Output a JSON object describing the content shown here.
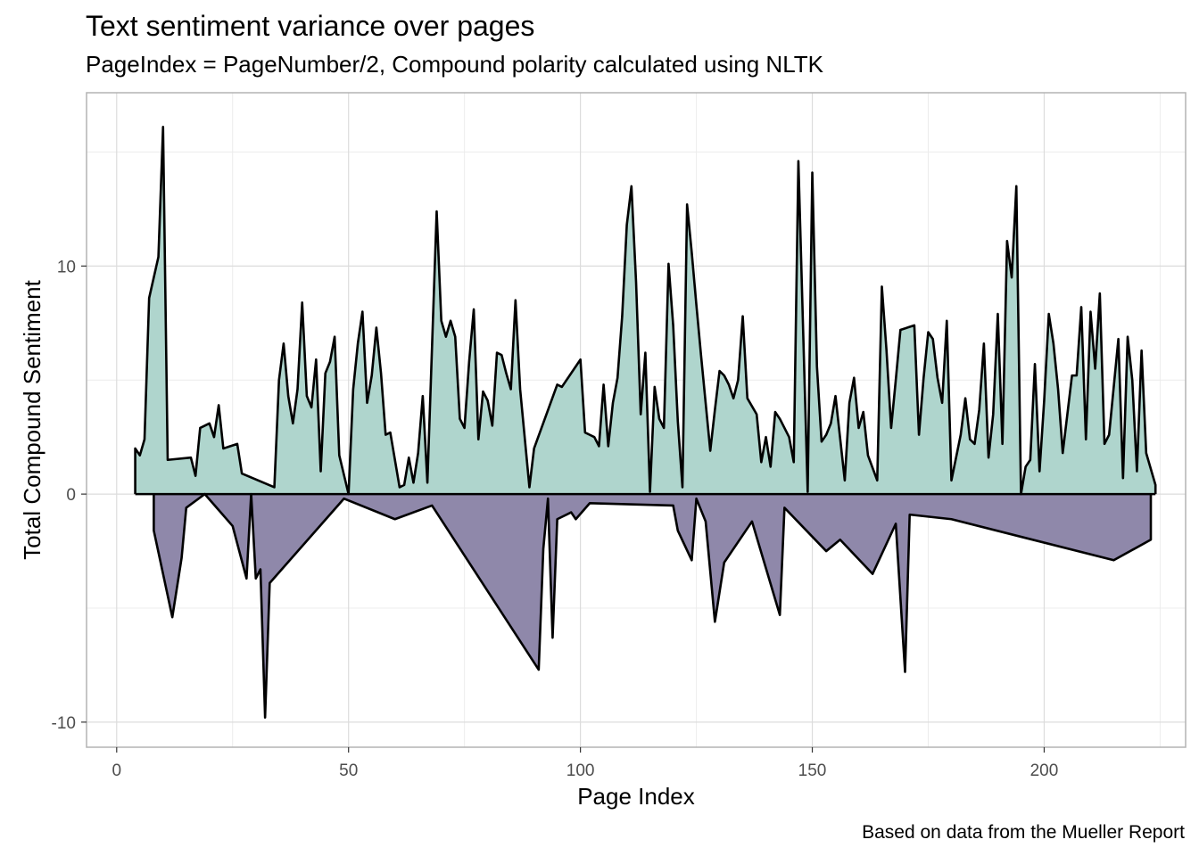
{
  "chart_data": {
    "type": "area",
    "title": "Text sentiment variance over pages",
    "subtitle": "PageIndex = PageNumber/2, Compound polarity calculated using NLTK",
    "caption": "Based on data from the Mueller Report",
    "xlabel": "Page Index",
    "ylabel": "Total Compound Sentiment",
    "xlim": [
      -6.5,
      230.5
    ],
    "ylim": [
      -11.1,
      17.6
    ],
    "x_ticks": [
      0,
      50,
      100,
      150,
      200
    ],
    "y_ticks": [
      -10,
      0,
      10
    ],
    "grid": true,
    "colors": {
      "positive": "#afd5cd",
      "negative": "#8f88aa",
      "line": "#000000",
      "grid": "#dcdcdc",
      "panel_border": "#b3b3b3"
    },
    "series": [
      {
        "values_sign": "positive",
        "points": [
          [
            4,
            0
          ],
          [
            4,
            2.0
          ],
          [
            5,
            1.7
          ],
          [
            6,
            2.4
          ],
          [
            7,
            8.6
          ],
          [
            9,
            10.4
          ],
          [
            10,
            16.1
          ],
          [
            11,
            1.5
          ],
          [
            16,
            1.6
          ],
          [
            17,
            0.8
          ],
          [
            18,
            2.9
          ],
          [
            20,
            3.1
          ],
          [
            21,
            2.5
          ],
          [
            22,
            3.9
          ],
          [
            23,
            2.0
          ],
          [
            26,
            2.2
          ],
          [
            27,
            0.9
          ],
          [
            34,
            0.3
          ],
          [
            35,
            5.0
          ],
          [
            36,
            6.6
          ],
          [
            37,
            4.3
          ],
          [
            38,
            3.1
          ],
          [
            39,
            4.6
          ],
          [
            40,
            8.4
          ],
          [
            41,
            4.3
          ],
          [
            42,
            3.8
          ],
          [
            43,
            5.9
          ],
          [
            44,
            1.0
          ],
          [
            45,
            5.3
          ],
          [
            46,
            5.8
          ],
          [
            47,
            6.9
          ],
          [
            48,
            1.7
          ],
          [
            50,
            0.0
          ],
          [
            51,
            4.6
          ],
          [
            52,
            6.6
          ],
          [
            53,
            8.0
          ],
          [
            54,
            4.0
          ],
          [
            55,
            5.2
          ],
          [
            56,
            7.3
          ],
          [
            57,
            5.3
          ],
          [
            58,
            2.6
          ],
          [
            59,
            2.7
          ],
          [
            61,
            0.3
          ],
          [
            62,
            0.4
          ],
          [
            63,
            1.6
          ],
          [
            64,
            0.5
          ],
          [
            65,
            1.8
          ],
          [
            66,
            4.3
          ],
          [
            67,
            0.5
          ],
          [
            69,
            12.4
          ],
          [
            70,
            7.6
          ],
          [
            71,
            6.9
          ],
          [
            72,
            7.6
          ],
          [
            73,
            6.9
          ],
          [
            74,
            3.3
          ],
          [
            75,
            2.9
          ],
          [
            76,
            5.8
          ],
          [
            77,
            8.1
          ],
          [
            78,
            2.4
          ],
          [
            79,
            4.5
          ],
          [
            80,
            4.1
          ],
          [
            81,
            3.0
          ],
          [
            82,
            6.2
          ],
          [
            83,
            6.1
          ],
          [
            84,
            5.3
          ],
          [
            85,
            4.6
          ],
          [
            86,
            8.5
          ],
          [
            87,
            4.6
          ],
          [
            89,
            0.3
          ],
          [
            90,
            2.0
          ],
          [
            95,
            4.8
          ],
          [
            96,
            4.7
          ],
          [
            100,
            5.9
          ],
          [
            101,
            2.7
          ],
          [
            102,
            2.6
          ],
          [
            103,
            2.5
          ],
          [
            104,
            2.1
          ],
          [
            105,
            4.8
          ],
          [
            106,
            2.1
          ],
          [
            107,
            4.0
          ],
          [
            108,
            5.1
          ],
          [
            109,
            7.8
          ],
          [
            110,
            11.8
          ],
          [
            111,
            13.5
          ],
          [
            112,
            9.3
          ],
          [
            113,
            3.5
          ],
          [
            114,
            6.2
          ],
          [
            115,
            0.1
          ],
          [
            116,
            4.7
          ],
          [
            117,
            3.3
          ],
          [
            118,
            2.9
          ],
          [
            119,
            10.1
          ],
          [
            120,
            7.4
          ],
          [
            121,
            3.2
          ],
          [
            122,
            0.3
          ],
          [
            123,
            12.7
          ],
          [
            124,
            10.6
          ],
          [
            125,
            8.3
          ],
          [
            126,
            6.1
          ],
          [
            128,
            1.9
          ],
          [
            129,
            3.7
          ],
          [
            130,
            5.4
          ],
          [
            131,
            5.2
          ],
          [
            132,
            4.8
          ],
          [
            133,
            4.2
          ],
          [
            134,
            5.0
          ],
          [
            135,
            7.8
          ],
          [
            136,
            4.2
          ],
          [
            138,
            3.5
          ],
          [
            139,
            1.4
          ],
          [
            140,
            2.5
          ],
          [
            141,
            1.2
          ],
          [
            142,
            3.6
          ],
          [
            143,
            3.3
          ],
          [
            145,
            2.5
          ],
          [
            146,
            1.4
          ],
          [
            147,
            14.6
          ],
          [
            149,
            0.1
          ],
          [
            150,
            14.1
          ],
          [
            151,
            5.6
          ],
          [
            152,
            2.3
          ],
          [
            153,
            2.6
          ],
          [
            154,
            3.1
          ],
          [
            155,
            4.3
          ],
          [
            157,
            0.6
          ],
          [
            158,
            4.0
          ],
          [
            159,
            5.1
          ],
          [
            160,
            2.9
          ],
          [
            161,
            3.6
          ],
          [
            162,
            1.7
          ],
          [
            164,
            0.6
          ],
          [
            165,
            9.1
          ],
          [
            166,
            6.3
          ],
          [
            167,
            2.9
          ],
          [
            168,
            5.0
          ],
          [
            169,
            7.2
          ],
          [
            172,
            7.4
          ],
          [
            173,
            2.6
          ],
          [
            174,
            5.1
          ],
          [
            175,
            7.1
          ],
          [
            176,
            6.8
          ],
          [
            177,
            5.1
          ],
          [
            178,
            4.0
          ],
          [
            179,
            7.6
          ],
          [
            180,
            0.6
          ],
          [
            182,
            2.6
          ],
          [
            183,
            4.2
          ],
          [
            184,
            2.4
          ],
          [
            185,
            2.2
          ],
          [
            186,
            3.7
          ],
          [
            187,
            6.6
          ],
          [
            188,
            1.6
          ],
          [
            189,
            3.5
          ],
          [
            190,
            7.9
          ],
          [
            191,
            2.2
          ],
          [
            192,
            11.1
          ],
          [
            193,
            9.5
          ],
          [
            194,
            13.5
          ],
          [
            195,
            0.0
          ],
          [
            196,
            1.2
          ],
          [
            197,
            1.5
          ],
          [
            198,
            5.7
          ],
          [
            199,
            1.0
          ],
          [
            200,
            4.1
          ],
          [
            201,
            7.9
          ],
          [
            202,
            6.6
          ],
          [
            203,
            4.6
          ],
          [
            204,
            1.8
          ],
          [
            206,
            5.2
          ],
          [
            207,
            5.2
          ],
          [
            208,
            8.2
          ],
          [
            209,
            2.4
          ],
          [
            210,
            8.0
          ],
          [
            211,
            5.5
          ],
          [
            212,
            8.8
          ],
          [
            213,
            2.2
          ],
          [
            214,
            2.6
          ],
          [
            216,
            6.8
          ],
          [
            217,
            0.7
          ],
          [
            218,
            6.9
          ],
          [
            219,
            5.0
          ],
          [
            220,
            1.0
          ],
          [
            221,
            6.3
          ],
          [
            222,
            1.8
          ],
          [
            224,
            0.4
          ],
          [
            224,
            0
          ]
        ]
      },
      {
        "values_sign": "negative",
        "points": [
          [
            8,
            0
          ],
          [
            8,
            -1.6
          ],
          [
            12,
            -5.4
          ],
          [
            14,
            -2.8
          ],
          [
            15,
            -0.6
          ],
          [
            19,
            0.0
          ],
          [
            22,
            -0.7
          ],
          [
            25,
            -1.4
          ],
          [
            28,
            -3.7
          ],
          [
            29,
            0.0
          ],
          [
            30,
            -3.7
          ],
          [
            31,
            -3.3
          ],
          [
            32,
            -9.8
          ],
          [
            33,
            -3.9
          ],
          [
            49,
            -0.2
          ],
          [
            60,
            -1.1
          ],
          [
            68,
            -0.5
          ],
          [
            91,
            -7.7
          ],
          [
            92,
            -2.4
          ],
          [
            93,
            -0.2
          ],
          [
            94,
            -6.3
          ],
          [
            95,
            -1.1
          ],
          [
            98,
            -0.8
          ],
          [
            99,
            -1.1
          ],
          [
            102,
            -0.4
          ],
          [
            120,
            -0.5
          ],
          [
            121,
            -1.6
          ],
          [
            124,
            -2.9
          ],
          [
            125,
            -0.2
          ],
          [
            127,
            -1.2
          ],
          [
            129,
            -5.6
          ],
          [
            131,
            -3.0
          ],
          [
            137,
            -1.2
          ],
          [
            143,
            -5.3
          ],
          [
            144,
            -0.6
          ],
          [
            153,
            -2.5
          ],
          [
            156,
            -2.0
          ],
          [
            163,
            -3.5
          ],
          [
            168,
            -1.3
          ],
          [
            170,
            -7.8
          ],
          [
            171,
            -0.9
          ],
          [
            180,
            -1.1
          ],
          [
            215,
            -2.9
          ],
          [
            223,
            -2.0
          ],
          [
            223,
            0
          ]
        ]
      }
    ]
  }
}
